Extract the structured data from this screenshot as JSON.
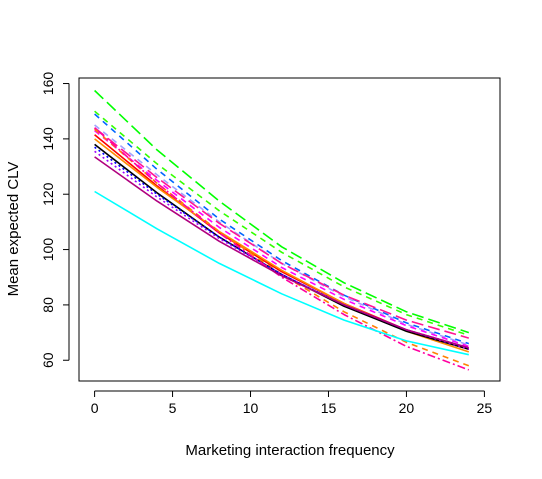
{
  "chart_data": {
    "type": "line",
    "title": "",
    "xlabel": "Marketing interaction frequency",
    "ylabel": "Mean expected CLV",
    "xlim": [
      -1,
      26
    ],
    "ylim": [
      52.5,
      162
    ],
    "xticks": [
      0,
      5,
      10,
      15,
      20,
      25
    ],
    "yticks": [
      60,
      80,
      100,
      120,
      140,
      160
    ],
    "grid": false,
    "legend": "none",
    "x": [
      0,
      4,
      8,
      12,
      16,
      20,
      24
    ],
    "series": [
      {
        "color": "#00FF00",
        "dash": "longdash",
        "values": [
          157.5,
          136,
          117.5,
          101,
          88,
          77.5,
          70
        ]
      },
      {
        "color": "#33FF00",
        "dash": "dashed",
        "values": [
          150,
          131,
          114,
          99,
          86.5,
          76.5,
          69
        ]
      },
      {
        "color": "#0066FF",
        "dash": "dashed",
        "values": [
          149,
          129,
          111,
          96,
          83.5,
          73.5,
          66
        ]
      },
      {
        "color": "#A0A0FF",
        "dash": "dashed",
        "values": [
          145,
          127,
          110,
          95,
          83,
          73,
          65.5
        ]
      },
      {
        "color": "#FF1493",
        "dash": "longdash",
        "values": [
          144,
          126,
          109.5,
          95,
          83.5,
          74.5,
          68
        ]
      },
      {
        "color": "#FF00FF",
        "dash": "dashed",
        "values": [
          143,
          125,
          108,
          93.5,
          82,
          72.5,
          65
        ]
      },
      {
        "color": "#FF0000",
        "dash": "solid",
        "values": [
          141.5,
          123,
          106,
          92,
          80.5,
          71,
          64
        ]
      },
      {
        "color": "#FF8C00",
        "dash": "solid",
        "values": [
          140,
          122.5,
          106.5,
          92.5,
          80.5,
          70.5,
          63
        ]
      },
      {
        "color": "#FF8000",
        "dash": "dashed",
        "values": [
          143.5,
          124,
          106.5,
          91,
          77.5,
          66.5,
          58
        ]
      },
      {
        "color": "#000000",
        "dash": "solid",
        "values": [
          138,
          120.5,
          104.5,
          91,
          79.5,
          70.5,
          64
        ]
      },
      {
        "color": "#0000FF",
        "dash": "dotted",
        "values": [
          137,
          120,
          104.5,
          91,
          80,
          71,
          64.5
        ]
      },
      {
        "color": "#A000FF",
        "dash": "dotted",
        "values": [
          135.5,
          119,
          104,
          91,
          80,
          71,
          64
        ]
      },
      {
        "color": "#FF00A0",
        "dash": "dotdash",
        "values": [
          144,
          124,
          106,
          90,
          76.5,
          65,
          56.5
        ]
      },
      {
        "color": "#B0007F",
        "dash": "solid",
        "values": [
          133.5,
          117.5,
          103,
          90.5,
          80,
          71,
          64.5
        ]
      },
      {
        "color": "#00FFFF",
        "dash": "solid",
        "values": [
          121,
          107.5,
          95,
          84,
          74.5,
          67,
          62
        ]
      }
    ]
  }
}
